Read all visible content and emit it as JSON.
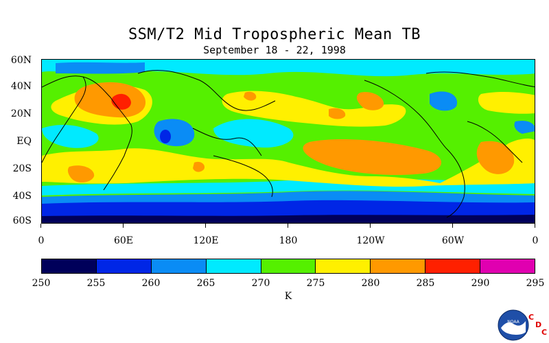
{
  "title": "SSM/T2 Mid Tropospheric Mean TB",
  "subtitle": "September 18 - 22, 1998",
  "y_axis_labels": [
    "60N",
    "40N",
    "20N",
    "EQ",
    "20S",
    "40S",
    "60S"
  ],
  "x_axis_labels": [
    "0",
    "60E",
    "120E",
    "180",
    "120W",
    "60W",
    "0"
  ],
  "colorbar": {
    "ticks": [
      "250",
      "255",
      "260",
      "265",
      "270",
      "275",
      "280",
      "285",
      "290",
      "295"
    ],
    "colors": [
      "#00005a",
      "#0026e6",
      "#0a8cf5",
      "#00eaff",
      "#55f000",
      "#fff000",
      "#ff9900",
      "#ff2000",
      "#e000b0"
    ],
    "unit": "K"
  },
  "logo": {
    "noaa_text": "NOAA",
    "cdc": [
      "C",
      "D",
      "C"
    ]
  }
}
